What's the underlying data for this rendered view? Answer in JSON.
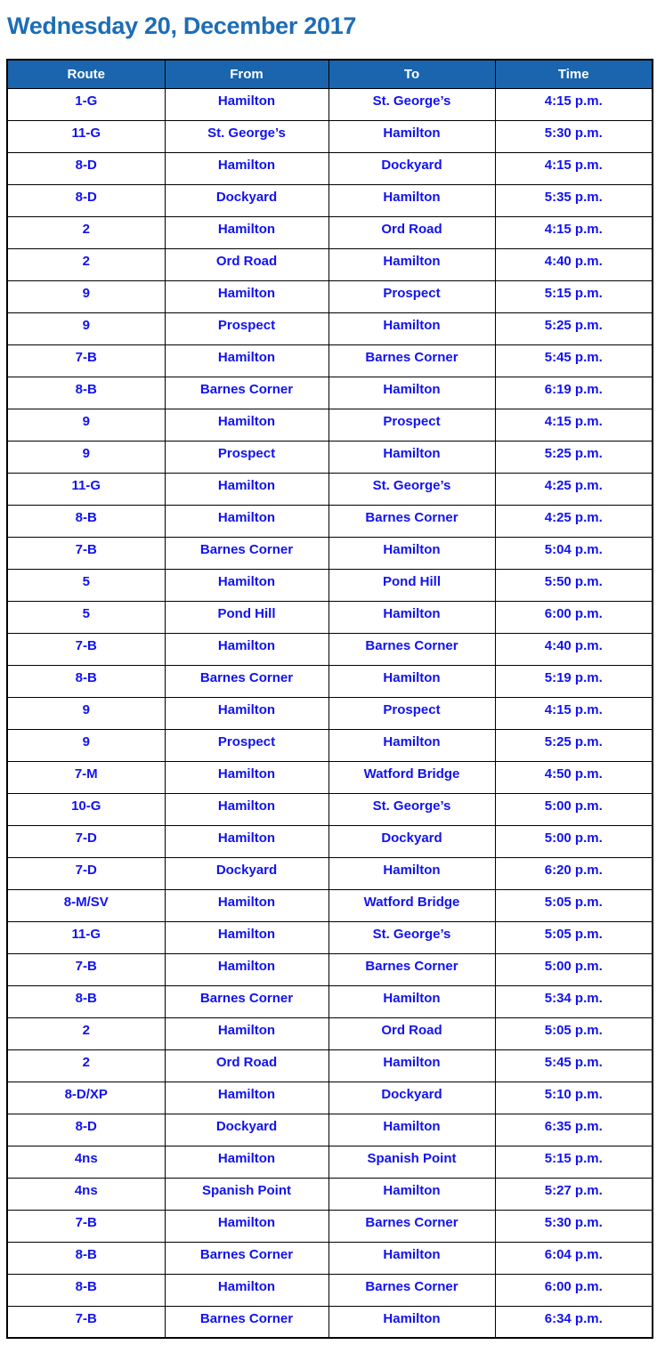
{
  "page_title": "Wednesday 20, December 2017",
  "colors": {
    "title_text": "#1d6db5",
    "table_header_background": "#1a65ad",
    "table_header_text": "#ffffff",
    "table_cell_text": "#1212f0",
    "table_border": "#000000",
    "page_background": "#ffffff"
  },
  "table": {
    "columns": [
      "Route",
      "From",
      "To",
      "Time"
    ],
    "rows": [
      [
        "1-G",
        "Hamilton",
        "St. George’s",
        "4:15 p.m."
      ],
      [
        "11-G",
        "St. George’s",
        "Hamilton",
        "5:30 p.m."
      ],
      [
        "8-D",
        "Hamilton",
        "Dockyard",
        "4:15 p.m."
      ],
      [
        "8-D",
        "Dockyard",
        "Hamilton",
        "5:35 p.m."
      ],
      [
        "2",
        "Hamilton",
        "Ord Road",
        "4:15 p.m."
      ],
      [
        "2",
        "Ord Road",
        "Hamilton",
        "4:40 p.m."
      ],
      [
        "9",
        "Hamilton",
        "Prospect",
        "5:15 p.m."
      ],
      [
        "9",
        "Prospect",
        "Hamilton",
        "5:25 p.m."
      ],
      [
        "7-B",
        "Hamilton",
        "Barnes Corner",
        "5:45 p.m."
      ],
      [
        "8-B",
        "Barnes Corner",
        "Hamilton",
        "6:19 p.m."
      ],
      [
        "9",
        "Hamilton",
        "Prospect",
        "4:15 p.m."
      ],
      [
        "9",
        "Prospect",
        "Hamilton",
        "5:25 p.m."
      ],
      [
        "11-G",
        "Hamilton",
        "St. George’s",
        "4:25 p.m."
      ],
      [
        "8-B",
        "Hamilton",
        "Barnes Corner",
        "4:25 p.m."
      ],
      [
        "7-B",
        "Barnes Corner",
        "Hamilton",
        "5:04 p.m."
      ],
      [
        "5",
        "Hamilton",
        "Pond Hill",
        "5:50 p.m."
      ],
      [
        "5",
        "Pond Hill",
        "Hamilton",
        "6:00 p.m."
      ],
      [
        "7-B",
        "Hamilton",
        "Barnes Corner",
        "4:40 p.m."
      ],
      [
        "8-B",
        "Barnes Corner",
        "Hamilton",
        "5:19 p.m."
      ],
      [
        "9",
        "Hamilton",
        "Prospect",
        "4:15 p.m."
      ],
      [
        "9",
        "Prospect",
        "Hamilton",
        "5:25 p.m."
      ],
      [
        "7-M",
        "Hamilton",
        "Watford Bridge",
        "4:50 p.m."
      ],
      [
        "10-G",
        "Hamilton",
        "St. George’s",
        "5:00 p.m."
      ],
      [
        "7-D",
        "Hamilton",
        "Dockyard",
        "5:00 p.m."
      ],
      [
        "7-D",
        "Dockyard",
        "Hamilton",
        "6:20 p.m."
      ],
      [
        "8-M/SV",
        "Hamilton",
        "Watford Bridge",
        "5:05 p.m."
      ],
      [
        "11-G",
        "Hamilton",
        "St. George’s",
        "5:05 p.m."
      ],
      [
        "7-B",
        "Hamilton",
        "Barnes Corner",
        "5:00 p.m."
      ],
      [
        "8-B",
        "Barnes Corner",
        "Hamilton",
        "5:34 p.m."
      ],
      [
        "2",
        "Hamilton",
        "Ord Road",
        "5:05 p.m."
      ],
      [
        "2",
        "Ord Road",
        "Hamilton",
        "5:45 p.m."
      ],
      [
        "8-D/XP",
        "Hamilton",
        "Dockyard",
        "5:10 p.m."
      ],
      [
        "8-D",
        "Dockyard",
        "Hamilton",
        "6:35 p.m."
      ],
      [
        "4ns",
        "Hamilton",
        "Spanish Point",
        "5:15 p.m."
      ],
      [
        "4ns",
        "Spanish Point",
        "Hamilton",
        "5:27 p.m."
      ],
      [
        "7-B",
        "Hamilton",
        "Barnes Corner",
        "5:30 p.m."
      ],
      [
        "8-B",
        "Barnes Corner",
        "Hamilton",
        "6:04 p.m."
      ],
      [
        "8-B",
        "Hamilton",
        "Barnes Corner",
        "6:00 p.m."
      ],
      [
        "7-B",
        "Barnes Corner",
        "Hamilton",
        "6:34 p.m."
      ]
    ]
  }
}
